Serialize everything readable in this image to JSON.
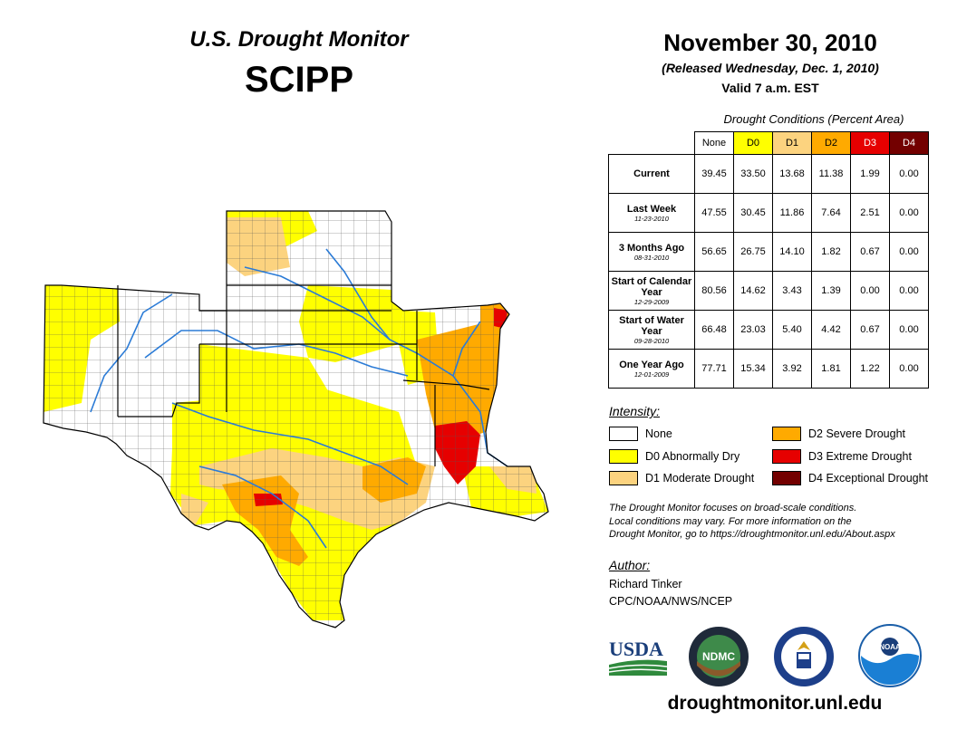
{
  "header": {
    "title": "U.S. Drought Monitor",
    "region": "SCIPP",
    "date": "November 30, 2010",
    "released": "(Released Wednesday, Dec. 1, 2010)",
    "valid": "Valid 7 a.m. EST"
  },
  "table": {
    "caption": "Drought Conditions (Percent Area)",
    "columns": [
      {
        "label": "None",
        "color": "#ffffff",
        "text_color": "#000000"
      },
      {
        "label": "D0",
        "color": "#ffff00",
        "text_color": "#000000"
      },
      {
        "label": "D1",
        "color": "#fcd37f",
        "text_color": "#000000"
      },
      {
        "label": "D2",
        "color": "#ffaa00",
        "text_color": "#000000"
      },
      {
        "label": "D3",
        "color": "#e60000",
        "text_color": "#ffffff"
      },
      {
        "label": "D4",
        "color": "#730000",
        "text_color": "#ffffff"
      }
    ],
    "rows": [
      {
        "label": "Current",
        "sublabel": "",
        "values": [
          "39.45",
          "33.50",
          "13.68",
          "11.38",
          "1.99",
          "0.00"
        ]
      },
      {
        "label": "Last Week",
        "sublabel": "11-23-2010",
        "values": [
          "47.55",
          "30.45",
          "11.86",
          "7.64",
          "2.51",
          "0.00"
        ]
      },
      {
        "label": "3 Months Ago",
        "sublabel": "08-31-2010",
        "values": [
          "56.65",
          "26.75",
          "14.10",
          "1.82",
          "0.67",
          "0.00"
        ]
      },
      {
        "label": "Start of Calendar Year",
        "sublabel": "12-29-2009",
        "values": [
          "80.56",
          "14.62",
          "3.43",
          "1.39",
          "0.00",
          "0.00"
        ]
      },
      {
        "label": "Start of Water Year",
        "sublabel": "09-28-2010",
        "values": [
          "66.48",
          "23.03",
          "5.40",
          "4.42",
          "0.67",
          "0.00"
        ]
      },
      {
        "label": "One Year Ago",
        "sublabel": "12-01-2009",
        "values": [
          "77.71",
          "15.34",
          "3.92",
          "1.81",
          "1.22",
          "0.00"
        ]
      }
    ]
  },
  "legend": {
    "title": "Intensity:",
    "items": [
      {
        "label": "None",
        "color": "#ffffff"
      },
      {
        "label": "D0 Abnormally Dry",
        "color": "#ffff00"
      },
      {
        "label": "D1 Moderate Drought",
        "color": "#fcd37f"
      },
      {
        "label": "D2 Severe Drought",
        "color": "#ffaa00"
      },
      {
        "label": "D3 Extreme Drought",
        "color": "#e60000"
      },
      {
        "label": "D4 Exceptional Drought",
        "color": "#730000"
      }
    ]
  },
  "note": {
    "line1": "The Drought Monitor focuses on broad-scale conditions.",
    "line2": "Local conditions may vary. For more information on the",
    "line3": "Drought Monitor, go to https://droughtmonitor.unl.edu/About.aspx"
  },
  "author": {
    "title": "Author:",
    "name": "Richard Tinker",
    "org": "CPC/NOAA/NWS/NCEP"
  },
  "logos": {
    "usda": "USDA",
    "ndmc": "NDMC",
    "noaa": "NOAA"
  },
  "footer": {
    "url": "droughtmonitor.unl.edu"
  },
  "colors": {
    "river": "#2b7bd6",
    "border": "#000000",
    "county": "#555555"
  }
}
